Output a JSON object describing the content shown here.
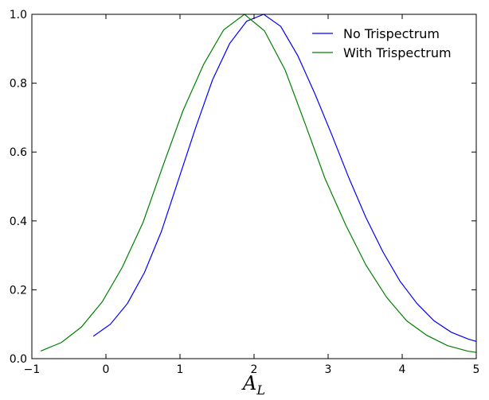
{
  "chart_data": {
    "type": "line",
    "title": "",
    "xlabel": "A",
    "xlabel_subscript": "L",
    "ylabel": "",
    "xlim": [
      -1,
      5
    ],
    "ylim": [
      0.0,
      1.0
    ],
    "xticks": [
      -1,
      0,
      1,
      2,
      3,
      4,
      5
    ],
    "xtick_labels": [
      "−1",
      "0",
      "1",
      "2",
      "3",
      "4",
      "5"
    ],
    "yticks": [
      0.0,
      0.2,
      0.4,
      0.6,
      0.8,
      1.0
    ],
    "ytick_labels": [
      "0.0",
      "0.2",
      "0.4",
      "0.6",
      "0.8",
      "1.0"
    ],
    "grid": false,
    "legend_position": "top-right",
    "series": [
      {
        "name": "No Trispectrum",
        "color": "#0000ff",
        "x": [
          -0.17,
          0.06,
          0.29,
          0.52,
          0.75,
          0.98,
          1.21,
          1.44,
          1.67,
          1.9,
          2.13,
          2.36,
          2.59,
          2.82,
          3.05,
          3.28,
          3.51,
          3.74,
          3.97,
          4.2,
          4.43,
          4.66,
          4.89,
          5.0
        ],
        "y": [
          0.065,
          0.1,
          0.16,
          0.25,
          0.37,
          0.52,
          0.67,
          0.81,
          0.915,
          0.98,
          1.0,
          0.965,
          0.88,
          0.77,
          0.65,
          0.525,
          0.41,
          0.31,
          0.225,
          0.16,
          0.11,
          0.077,
          0.057,
          0.05
        ]
      },
      {
        "name": "With Trispectrum",
        "color": "#008000",
        "x": [
          -0.88,
          -0.6,
          -0.33,
          -0.05,
          0.22,
          0.5,
          0.77,
          1.04,
          1.32,
          1.59,
          1.87,
          2.14,
          2.42,
          2.69,
          2.96,
          3.24,
          3.51,
          3.79,
          4.06,
          4.33,
          4.61,
          4.88,
          5.0
        ],
        "y": [
          0.022,
          0.047,
          0.092,
          0.165,
          0.265,
          0.395,
          0.56,
          0.72,
          0.855,
          0.955,
          1.0,
          0.952,
          0.838,
          0.682,
          0.522,
          0.387,
          0.272,
          0.178,
          0.11,
          0.068,
          0.038,
          0.022,
          0.018
        ]
      }
    ]
  }
}
